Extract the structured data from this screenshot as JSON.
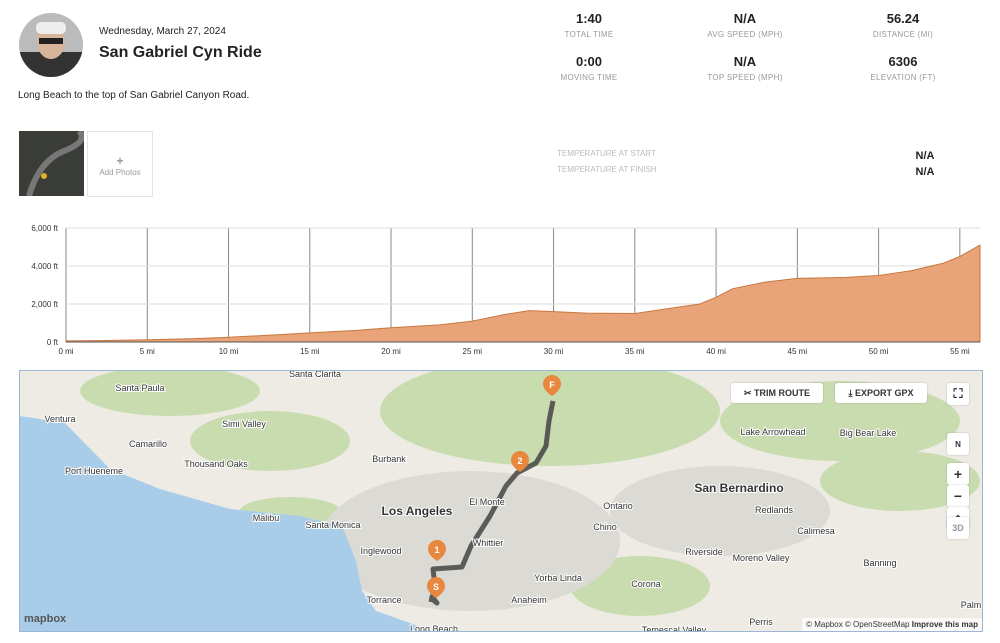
{
  "header": {
    "date": "Wednesday, March 27, 2024",
    "title": "San Gabriel Cyn Ride",
    "description": "Long Beach to the top of San Gabriel Canyon Road."
  },
  "stats": [
    {
      "value": "1:40",
      "label": "TOTAL TIME"
    },
    {
      "value": "N/A",
      "label": "AVG SPEED (MPH)"
    },
    {
      "value": "56.24",
      "label": "DISTANCE (MI)"
    },
    {
      "value": "0:00",
      "label": "MOVING TIME"
    },
    {
      "value": "N/A",
      "label": "TOP SPEED (MPH)"
    },
    {
      "value": "6306",
      "label": "ELEVATION (FT)"
    }
  ],
  "photos": {
    "add": "Add Photos"
  },
  "temperature": [
    {
      "label": "TEMPERATURE AT START",
      "value": "N/A"
    },
    {
      "label": "TEMPERATURE AT FINISH",
      "value": "N/A"
    }
  ],
  "elevation": {
    "type": "area",
    "color": "#e8a478",
    "x": [
      0,
      2,
      5,
      8,
      10,
      13,
      15,
      18,
      20,
      23,
      25,
      27,
      28.5,
      30,
      32,
      35,
      37,
      39,
      40,
      41,
      43,
      45,
      48,
      50,
      52,
      54,
      55,
      56.24
    ],
    "values": [
      60,
      70,
      120,
      180,
      250,
      380,
      480,
      620,
      750,
      900,
      1100,
      1450,
      1650,
      1600,
      1520,
      1500,
      1750,
      2000,
      2350,
      2800,
      3150,
      3350,
      3400,
      3500,
      3750,
      4150,
      4500,
      5100
    ],
    "xlim": [
      0,
      56.24
    ],
    "ylim": [
      0,
      6000
    ],
    "xticks": [
      {
        "value": 0,
        "label": "0 mi"
      },
      {
        "value": 5,
        "label": "5 mi"
      },
      {
        "value": 10,
        "label": "10 mi"
      },
      {
        "value": 15,
        "label": "15 mi"
      },
      {
        "value": 20,
        "label": "20 mi"
      },
      {
        "value": 25,
        "label": "25 mi"
      },
      {
        "value": 30,
        "label": "30 mi"
      },
      {
        "value": 35,
        "label": "35 mi"
      },
      {
        "value": 40,
        "label": "40 mi"
      },
      {
        "value": 45,
        "label": "45 mi"
      },
      {
        "value": 50,
        "label": "50 mi"
      },
      {
        "value": 55,
        "label": "55 mi"
      }
    ],
    "yticks": [
      {
        "value": 0,
        "label": "0 ft"
      },
      {
        "value": 2000,
        "label": "2,000 ft"
      },
      {
        "value": 4000,
        "label": "4,000 ft"
      },
      {
        "value": 6000,
        "label": "6,000 ft"
      }
    ],
    "grid": true
  },
  "map": {
    "places": [
      "Santa Clarita",
      "Santa Paula",
      "Ventura",
      "Simi Valley",
      "Camarillo",
      "Burbank",
      "Thousand Oaks",
      "Port Hueneme",
      "El Monte",
      "Los Angeles",
      "Ontario",
      "San Bernardino",
      "Malibu",
      "Santa Monica",
      "Redlands",
      "Calimesa",
      "Chino",
      "Whittier",
      "Inglewood",
      "Riverside",
      "Moreno Valley",
      "Banning",
      "Yorba Linda",
      "Corona",
      "Torrance",
      "Anaheim",
      "Long Beach",
      "Perris",
      "Temescal Valley",
      "Lake Arrowhead",
      "Big Bear Lake",
      "Palm"
    ],
    "markers": [
      "S",
      "1",
      "2",
      "F"
    ],
    "buttons": {
      "trim": "TRIM ROUTE",
      "export": "EXPORT GPX",
      "north": "N",
      "zoom_in": "+",
      "zoom_out": "−",
      "three_d": "3D"
    },
    "logo": "mapbox",
    "attribution": "© Mapbox © OpenStreetMap",
    "improve": "Improve this map"
  }
}
